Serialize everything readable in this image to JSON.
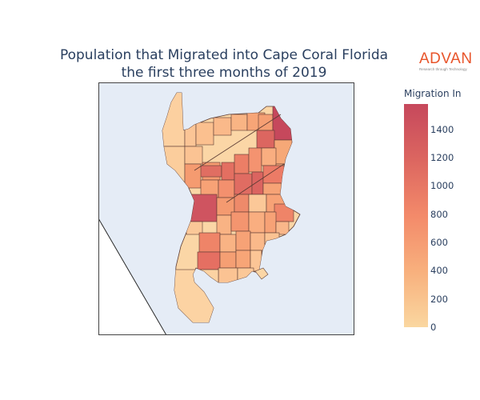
{
  "title_line1": "Population that Migrated into Cape Coral Florida",
  "title_line2": "the first three months of 2019",
  "logo": {
    "word": "ADVAN",
    "tagline": "Research through Technology",
    "color": "#e8542a"
  },
  "colorbar": {
    "title": "Migration In",
    "ticks": [
      "0",
      "200",
      "400",
      "600",
      "800",
      "1000",
      "1200",
      "1400"
    ],
    "min": 0,
    "max": 1580,
    "colors": [
      "#fad7a0",
      "#f8b07d",
      "#f38a6a",
      "#dc6660",
      "#c6485c"
    ]
  },
  "map": {
    "water_color": "#e5ecf6",
    "outside_color": "#ffffff",
    "border_color": "#5a3a33"
  }
}
